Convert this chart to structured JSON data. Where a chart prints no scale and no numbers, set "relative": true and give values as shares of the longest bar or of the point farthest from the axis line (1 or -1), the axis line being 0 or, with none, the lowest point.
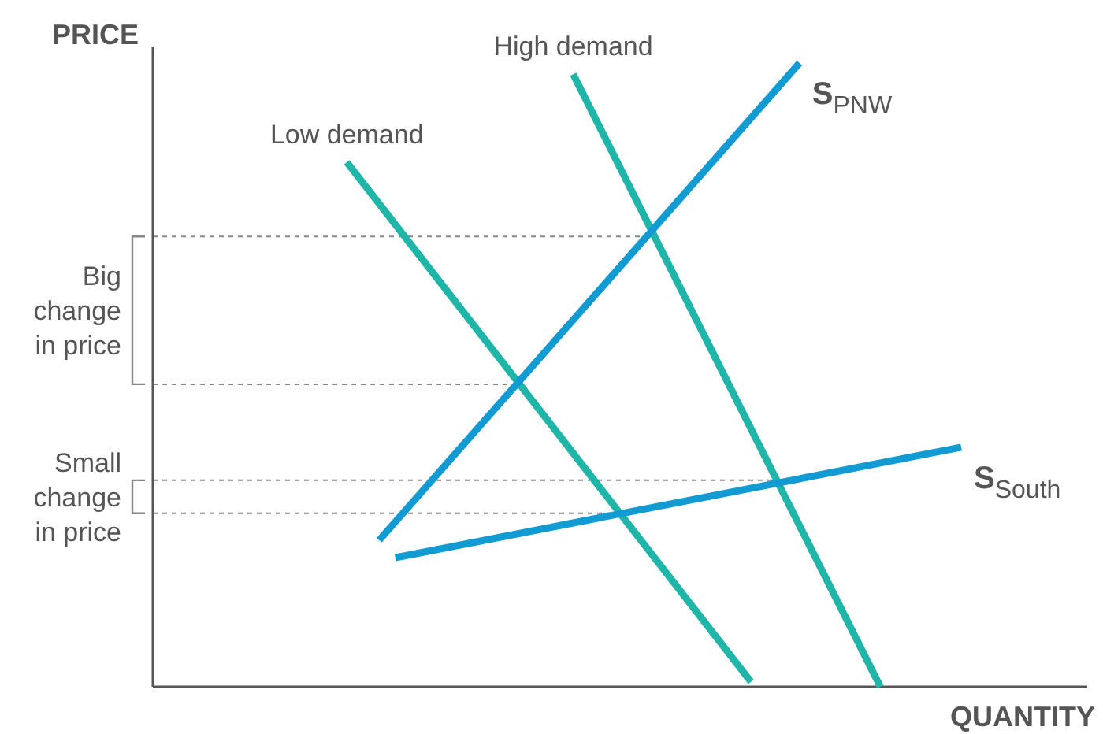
{
  "chart_data": {
    "type": "line",
    "relative": true,
    "xlabel": "QUANTITY",
    "ylabel": "PRICE",
    "marker": "none",
    "line_style": "solid",
    "categories": [
      null,
      null,
      null,
      null,
      null,
      null,
      null,
      null,
      null,
      null,
      null,
      null,
      null,
      null,
      null,
      null,
      null,
      null,
      null,
      null,
      null,
      null,
      null,
      null,
      null,
      null,
      null,
      null,
      null,
      null,
      null,
      null,
      null,
      null,
      null,
      null,
      null,
      null,
      null,
      null,
      null,
      null,
      null,
      null,
      null,
      null,
      null,
      null,
      null,
      null,
      null
    ],
    "series": [
      {
        "name": "Low demand",
        "color": "#1fb5a9",
        "values": [
          null,
          null,
          null,
          null,
          null,
          null,
          null,
          null,
          null,
          null,
          null,
          null,
          0.841,
          null,
          null,
          null,
          null,
          null,
          null,
          null,
          null,
          null,
          null,
          null,
          null,
          null,
          null,
          null,
          null,
          null,
          null,
          null,
          null,
          null,
          null,
          null,
          null,
          0.008,
          null,
          null,
          null,
          null,
          null,
          null,
          null,
          null,
          null,
          null,
          null,
          null,
          null
        ]
      },
      {
        "name": "High demand",
        "color": "#1fb5a9",
        "values": [
          null,
          null,
          null,
          null,
          null,
          null,
          null,
          null,
          null,
          null,
          null,
          null,
          null,
          null,
          null,
          null,
          null,
          null,
          null,
          null,
          null,
          null,
          null,
          null,
          null,
          null,
          0.982,
          null,
          null,
          null,
          null,
          null,
          null,
          null,
          null,
          null,
          null,
          null,
          null,
          null,
          null,
          null,
          null,
          null,
          null,
          0,
          null,
          null,
          null,
          null,
          null
        ]
      },
      {
        "name": "S$_{PNW}$",
        "color": "#129ad2",
        "values": [
          null,
          null,
          null,
          null,
          null,
          null,
          null,
          null,
          null,
          null,
          null,
          null,
          null,
          null,
          0.235,
          null,
          null,
          null,
          null,
          null,
          null,
          null,
          null,
          null,
          null,
          null,
          null,
          null,
          null,
          null,
          null,
          null,
          null,
          null,
          null,
          null,
          null,
          null,
          null,
          null,
          1,
          null,
          null,
          null,
          null,
          null,
          null,
          null,
          null,
          null,
          null
        ]
      },
      {
        "name": "S$_{South}$",
        "color": "#129ad2",
        "values": [
          null,
          null,
          null,
          null,
          null,
          null,
          null,
          null,
          null,
          null,
          null,
          null,
          null,
          null,
          null,
          0.207,
          null,
          null,
          null,
          null,
          null,
          null,
          null,
          null,
          null,
          null,
          null,
          null,
          null,
          null,
          null,
          null,
          null,
          null,
          null,
          null,
          null,
          null,
          null,
          null,
          null,
          null,
          null,
          null,
          null,
          null,
          null,
          null,
          null,
          null,
          0.384
        ]
      }
    ],
    "ref_lines": [
      {
        "axis": "y",
        "value": 0.722,
        "label": "Big change in price",
        "color": "#888888",
        "line_style": "dashed"
      },
      {
        "axis": "y",
        "value": 0.485,
        "color": "#888888",
        "line_style": "dashed"
      },
      {
        "axis": "y",
        "value": 0.331,
        "label": "Small change in price",
        "color": "#888888",
        "line_style": "dashed"
      },
      {
        "axis": "y",
        "value": 0.278,
        "color": "#888888",
        "line_style": "dashed"
      }
    ]
  }
}
